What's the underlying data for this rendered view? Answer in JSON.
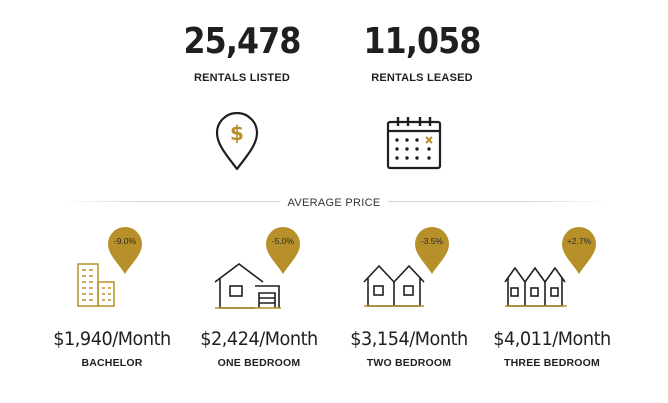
{
  "stats": [
    {
      "value": "25,478",
      "label": "RENTALS LISTED",
      "icon": "dollar-location-pin-icon"
    },
    {
      "value": "11,058",
      "label": "RENTALS LEASED",
      "icon": "calendar-icon"
    }
  ],
  "average_price": {
    "title": "AVERAGE PRICE",
    "items": [
      {
        "change": "-9.0%",
        "price": "$1,940/Month",
        "type": "BACHELOR",
        "icon": "apartment-building-icon"
      },
      {
        "change": "-5.0%",
        "price": "$2,424/Month",
        "type": "ONE BEDROOM",
        "icon": "house-with-garage-icon"
      },
      {
        "change": "-3.5%",
        "price": "$3,154/Month",
        "type": "TWO BEDROOM",
        "icon": "two-houses-icon"
      },
      {
        "change": "+2.7%",
        "price": "$4,011/Month",
        "type": "THREE BEDROOM",
        "icon": "three-houses-icon"
      }
    ]
  },
  "colors": {
    "accent": "#b8902a",
    "text": "#1f1f1f",
    "divider": "#d6d6d6"
  }
}
